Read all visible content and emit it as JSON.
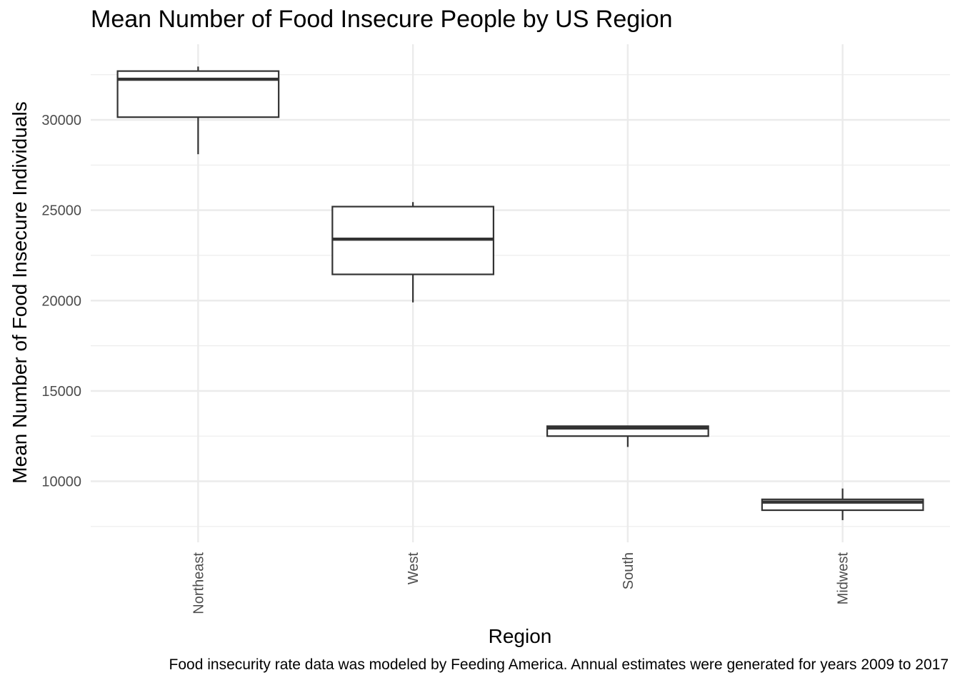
{
  "chart_data": {
    "type": "boxplot",
    "title": "Mean Number of Food Insecure People by US Region",
    "xlabel": "Region",
    "ylabel": "Mean Number of Food Insecure Individuals",
    "caption": "Food insecurity rate data was modeled by Feeding America. Annual estimates were generated for years 2009 to 2017",
    "categories": [
      "Northeast",
      "West",
      "South",
      "Midwest"
    ],
    "yticks": [
      10000,
      15000,
      20000,
      25000,
      30000
    ],
    "ylim": [
      7300,
      34000
    ],
    "grid": true,
    "boxes": [
      {
        "category": "Northeast",
        "min": 28100,
        "q1": 30150,
        "median": 32250,
        "q3": 32700,
        "max": 32950
      },
      {
        "category": "West",
        "min": 19900,
        "q1": 21450,
        "median": 23400,
        "q3": 25200,
        "max": 25450
      },
      {
        "category": "South",
        "min": 11900,
        "q1": 12500,
        "median": 12950,
        "q3": 13050,
        "max": 13050
      },
      {
        "category": "Midwest",
        "min": 7850,
        "q1": 8400,
        "median": 8850,
        "q3": 9000,
        "max": 9600
      }
    ]
  }
}
